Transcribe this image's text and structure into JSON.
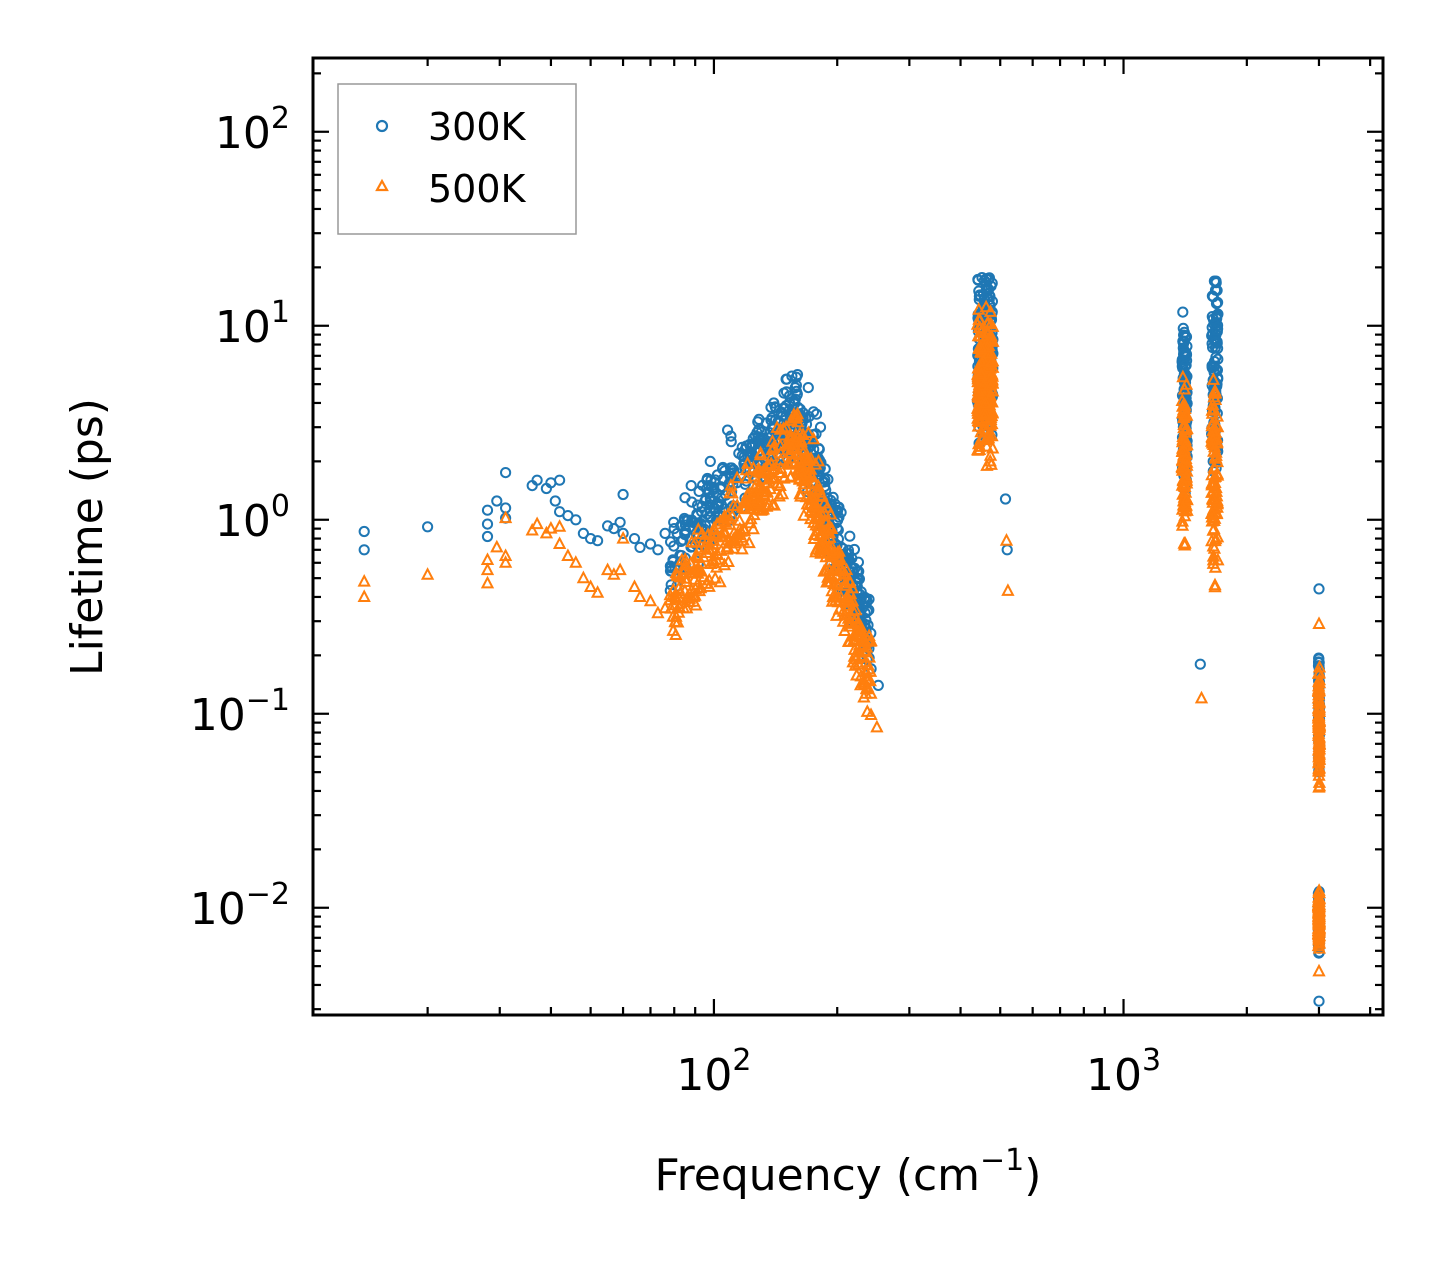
{
  "chart_data": {
    "type": "scatter",
    "title": "",
    "xscale": "log",
    "yscale": "log",
    "xlabel": "Frequency (cm",
    "xlabel_sup": "−1",
    "xlabel_suffix": ")",
    "ylabel": "Lifetime (ps)",
    "xlim": [
      10.5,
      4300
    ],
    "ylim": [
      0.0028,
      240
    ],
    "x_major_ticks": [
      {
        "value": 100,
        "base": "10",
        "exp": "2"
      },
      {
        "value": 1000,
        "base": "10",
        "exp": "3"
      }
    ],
    "y_major_ticks": [
      {
        "value": 100,
        "base": "10",
        "exp": "2"
      },
      {
        "value": 10,
        "base": "10",
        "exp": "1"
      },
      {
        "value": 1,
        "base": "10",
        "exp": "0"
      },
      {
        "value": 0.1,
        "base": "10",
        "exp": "−1"
      },
      {
        "value": 0.01,
        "base": "10",
        "exp": "−2"
      }
    ],
    "legend": {
      "position": "upper-left"
    },
    "series": [
      {
        "name": "300K",
        "marker": "circle",
        "color": "#1f77b4",
        "clusters": [
          {
            "points": [
              [
                14,
                0.87
              ],
              [
                14,
                0.7
              ],
              [
                20,
                0.92
              ],
              [
                28,
                1.12
              ],
              [
                28,
                0.95
              ],
              [
                28,
                0.82
              ],
              [
                29.5,
                1.25
              ],
              [
                31,
                1.75
              ],
              [
                31,
                1.15
              ],
              [
                31,
                1.02
              ],
              [
                36,
                1.5
              ],
              [
                37,
                1.6
              ],
              [
                39,
                1.45
              ],
              [
                40,
                1.55
              ],
              [
                41,
                1.25
              ],
              [
                42,
                1.6
              ],
              [
                42,
                1.1
              ],
              [
                44,
                1.05
              ],
              [
                46,
                1.0
              ],
              [
                48,
                0.85
              ],
              [
                50,
                0.8
              ],
              [
                52,
                0.78
              ],
              [
                55,
                0.93
              ],
              [
                57,
                0.9
              ],
              [
                59,
                0.97
              ],
              [
                60,
                0.85
              ],
              [
                60,
                1.35
              ],
              [
                64,
                0.8
              ],
              [
                66,
                0.72
              ],
              [
                70,
                0.75
              ],
              [
                73,
                0.7
              ],
              [
                76,
                0.85
              ],
              [
                80,
                0.9
              ],
              [
                85,
                1.3
              ],
              [
                88,
                1.5
              ],
              [
                92,
                1.4
              ],
              [
                98,
                2.0
              ],
              [
                102,
                1.7
              ],
              [
                108,
                2.9
              ],
              [
                110,
                2.7
              ],
              [
                115,
                2.2
              ],
              [
                120,
                2.4
              ],
              [
                128,
                3.2
              ],
              [
                140,
                4.0
              ],
              [
                150,
                5.3
              ],
              [
                155,
                5.5
              ],
              [
                160,
                5.6
              ],
              [
                170,
                4.8
              ],
              [
                175,
                3.6
              ],
              [
                178,
                3.5
              ],
              [
                182,
                3.0
              ],
              [
                252,
                0.14
              ],
              [
                515,
                1.28
              ],
              [
                520,
                0.7
              ],
              [
                1540,
                0.18
              ],
              [
                3000,
                0.44
              ],
              [
                3000,
                0.0033
              ]
            ]
          },
          {
            "xr": [
              78,
              160
            ],
            "ymid": [
              0.65,
              3.8
            ],
            "spread": 1.7,
            "n": 260
          },
          {
            "xr": [
              160,
              242
            ],
            "ymid": [
              3.2,
              0.24
            ],
            "spread": 1.8,
            "n": 260
          },
          {
            "xr": [
              440,
              480
            ],
            "ymid": [
              7,
              7
            ],
            "spread": 3.0,
            "n": 220
          },
          {
            "xr": [
              1390,
              1430
            ],
            "ymid": [
              4,
              4
            ],
            "spread": 3.2,
            "n": 90
          },
          {
            "xr": [
              1640,
              1700
            ],
            "ymid": [
              5,
              5
            ],
            "spread": 4.0,
            "n": 90
          },
          {
            "xr": [
              2990,
              3010
            ],
            "ymid": [
              0.1,
              0.1
            ],
            "spread": 2.4,
            "n": 80
          },
          {
            "xr": [
              2990,
              3010
            ],
            "ymid": [
              0.0085,
              0.0085
            ],
            "spread": 1.55,
            "n": 80
          }
        ]
      },
      {
        "name": "500K",
        "marker": "triangle",
        "color": "#ff7f0e",
        "clusters": [
          {
            "points": [
              [
                14,
                0.48
              ],
              [
                14,
                0.4
              ],
              [
                20,
                0.52
              ],
              [
                28,
                0.62
              ],
              [
                28,
                0.55
              ],
              [
                28,
                0.47
              ],
              [
                29.5,
                0.72
              ],
              [
                31,
                1.02
              ],
              [
                31,
                0.65
              ],
              [
                31,
                0.6
              ],
              [
                36,
                0.88
              ],
              [
                37,
                0.95
              ],
              [
                39,
                0.85
              ],
              [
                40,
                0.9
              ],
              [
                42,
                0.75
              ],
              [
                42,
                0.92
              ],
              [
                44,
                0.65
              ],
              [
                46,
                0.6
              ],
              [
                48,
                0.5
              ],
              [
                50,
                0.45
              ],
              [
                52,
                0.42
              ],
              [
                55,
                0.55
              ],
              [
                57,
                0.52
              ],
              [
                59,
                0.55
              ],
              [
                60,
                0.8
              ],
              [
                64,
                0.45
              ],
              [
                66,
                0.4
              ],
              [
                70,
                0.38
              ],
              [
                73,
                0.33
              ],
              [
                76,
                0.35
              ],
              [
                80,
                0.4
              ],
              [
                85,
                0.55
              ],
              [
                92,
                0.7
              ],
              [
                100,
                0.9
              ],
              [
                110,
                1.5
              ],
              [
                120,
                1.8
              ],
              [
                130,
                2.2
              ],
              [
                150,
                3.0
              ],
              [
                160,
                3.5
              ],
              [
                170,
                2.8
              ],
              [
                175,
                2.6
              ],
              [
                180,
                2.0
              ],
              [
                250,
                0.085
              ],
              [
                518,
                0.78
              ],
              [
                522,
                0.43
              ],
              [
                1550,
                0.12
              ],
              [
                3000,
                0.29
              ],
              [
                3000,
                0.0047
              ]
            ]
          },
          {
            "xr": [
              78,
              160
            ],
            "ymid": [
              0.35,
              2.6
            ],
            "spread": 1.7,
            "n": 260
          },
          {
            "xr": [
              160,
              242
            ],
            "ymid": [
              2.2,
              0.15
            ],
            "spread": 1.8,
            "n": 260
          },
          {
            "xr": [
              440,
              480
            ],
            "ymid": [
              5,
              5
            ],
            "spread": 2.8,
            "n": 220
          },
          {
            "xr": [
              1390,
              1430
            ],
            "ymid": [
              2,
              2
            ],
            "spread": 3.0,
            "n": 90
          },
          {
            "xr": [
              1640,
              1700
            ],
            "ymid": [
              1.5,
              1.5
            ],
            "spread": 3.8,
            "n": 90
          },
          {
            "xr": [
              2990,
              3010
            ],
            "ymid": [
              0.09,
              0.09
            ],
            "spread": 2.3,
            "n": 80
          },
          {
            "xr": [
              2990,
              3010
            ],
            "ymid": [
              0.0085,
              0.0085
            ],
            "spread": 1.5,
            "n": 80
          }
        ]
      }
    ]
  }
}
